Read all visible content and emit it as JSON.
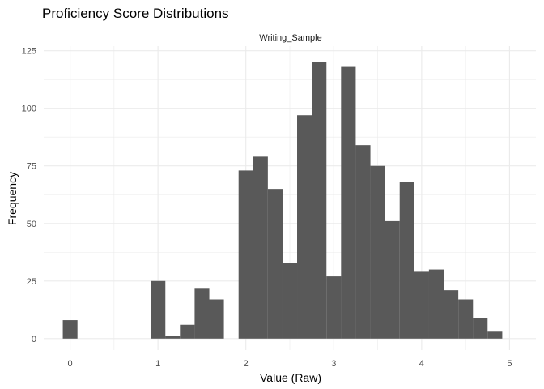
{
  "chart_data": {
    "type": "bar",
    "title": "Proficiency Score Distributions",
    "facet": "Writing_Sample",
    "xlabel": "Value (Raw)",
    "ylabel": "Frequency",
    "xlim": [
      -0.3,
      5.3
    ],
    "ylim": [
      -5,
      127
    ],
    "x_ticks": [
      0,
      1,
      2,
      3,
      4,
      5
    ],
    "y_ticks": [
      0,
      25,
      50,
      75,
      100,
      125
    ],
    "grid": true,
    "bin_width": 0.167,
    "bins": [
      {
        "start": -0.083,
        "count": 8
      },
      {
        "start": 0.917,
        "count": 25
      },
      {
        "start": 1.083,
        "count": 1
      },
      {
        "start": 1.25,
        "count": 6
      },
      {
        "start": 1.417,
        "count": 22
      },
      {
        "start": 1.583,
        "count": 17
      },
      {
        "start": 1.917,
        "count": 73
      },
      {
        "start": 2.083,
        "count": 79
      },
      {
        "start": 2.25,
        "count": 65
      },
      {
        "start": 2.417,
        "count": 33
      },
      {
        "start": 2.583,
        "count": 97
      },
      {
        "start": 2.75,
        "count": 120
      },
      {
        "start": 2.917,
        "count": 27
      },
      {
        "start": 3.083,
        "count": 118
      },
      {
        "start": 3.25,
        "count": 84
      },
      {
        "start": 3.417,
        "count": 75
      },
      {
        "start": 3.583,
        "count": 51
      },
      {
        "start": 3.75,
        "count": 68
      },
      {
        "start": 3.917,
        "count": 29
      },
      {
        "start": 4.083,
        "count": 30
      },
      {
        "start": 4.25,
        "count": 21
      },
      {
        "start": 4.417,
        "count": 17
      },
      {
        "start": 4.583,
        "count": 9
      },
      {
        "start": 4.75,
        "count": 3
      }
    ],
    "bar_color": "#595959",
    "grid_color": "#ebebeb"
  }
}
